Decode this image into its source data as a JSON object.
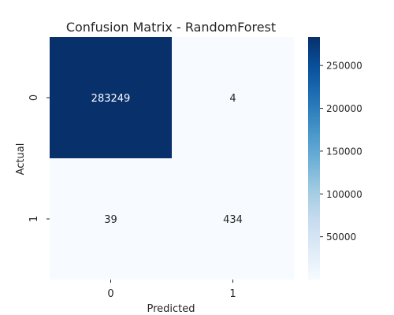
{
  "chart_data": {
    "type": "heatmap",
    "title": "Confusion Matrix - RandomForest",
    "xlabel": "Predicted",
    "ylabel": "Actual",
    "x_categories": [
      "0",
      "1"
    ],
    "y_categories": [
      "0",
      "1"
    ],
    "values": [
      [
        283249,
        4
      ],
      [
        39,
        434
      ]
    ],
    "colorscale": "Blues",
    "color_range": [
      4,
      283249
    ],
    "colorbar_ticks": [
      50000,
      100000,
      150000,
      200000,
      250000
    ],
    "annotations": [
      [
        "283249",
        "4"
      ],
      [
        "39",
        "434"
      ]
    ]
  }
}
